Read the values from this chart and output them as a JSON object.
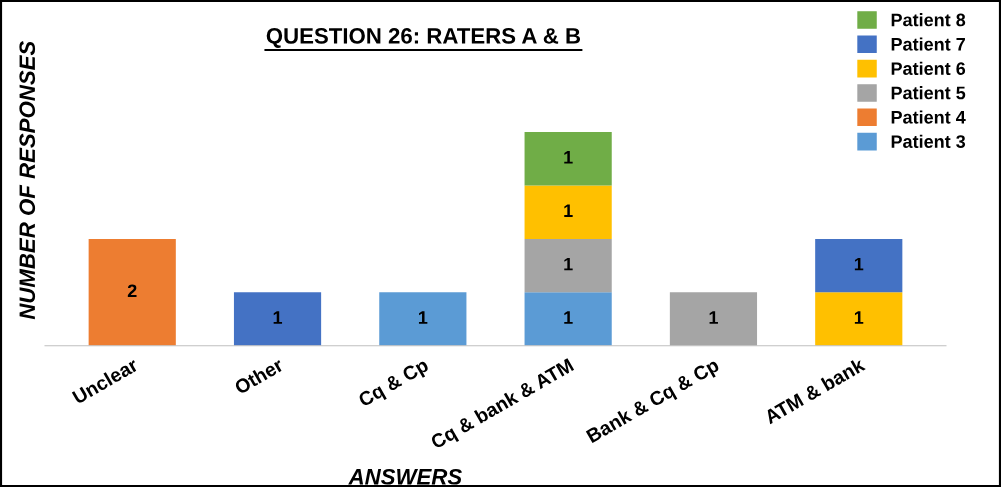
{
  "chart_data": {
    "type": "bar",
    "title": "QUESTION 26: RATERS A & B",
    "xlabel": "ANSWERS",
    "ylabel": "NUMBER OF RESPONSES",
    "categories": [
      "Unclear",
      "Other",
      "Cq & Cp",
      "Cq & bank & ATM",
      "Bank & Cq & Cp",
      "ATM & bank"
    ],
    "stacked": true,
    "data_labels": true,
    "legend": "top right",
    "tick_labels": "x",
    "series": [
      {
        "name": "Patient 3",
        "color": "#5b9bd5",
        "values": [
          null,
          null,
          1,
          1,
          null,
          null
        ]
      },
      {
        "name": "Patient 4",
        "color": "#ed7d31",
        "values": [
          2,
          null,
          null,
          null,
          null,
          null
        ]
      },
      {
        "name": "Patient 5",
        "color": "#a5a5a5",
        "values": [
          null,
          null,
          null,
          1,
          1,
          null
        ]
      },
      {
        "name": "Patient 6",
        "color": "#ffc000",
        "values": [
          null,
          null,
          null,
          1,
          null,
          1
        ]
      },
      {
        "name": "Patient 7",
        "color": "#4472c4",
        "values": [
          null,
          1,
          null,
          null,
          null,
          1
        ]
      },
      {
        "name": "Patient 8",
        "color": "#70ad47",
        "values": [
          null,
          null,
          null,
          1,
          null,
          null
        ]
      }
    ]
  }
}
